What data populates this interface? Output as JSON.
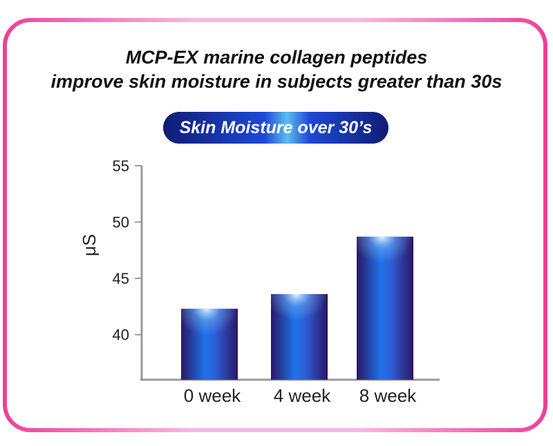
{
  "header": {
    "title_line1": "MCP-EX marine collagen peptides",
    "title_line2": "improve skin moisture in subjects greater than 30s"
  },
  "badge": {
    "label": "Skin Moisture over 30’s"
  },
  "colors": {
    "frame_pink": "#ee3f97",
    "badge_blue": "#101c73",
    "bar_dark": "#2a1766",
    "bar_blue": "#1f72e8",
    "axis": "#999999"
  },
  "chart_data": {
    "type": "bar",
    "categories": [
      "0 week",
      "4 week",
      "8 week"
    ],
    "values": [
      42.3,
      43.6,
      48.7
    ],
    "ylabel": "μS",
    "xlabel": "",
    "ylim": [
      36,
      55
    ],
    "yticks": [
      40,
      45,
      50,
      55
    ],
    "grid": false,
    "legend": "none"
  }
}
